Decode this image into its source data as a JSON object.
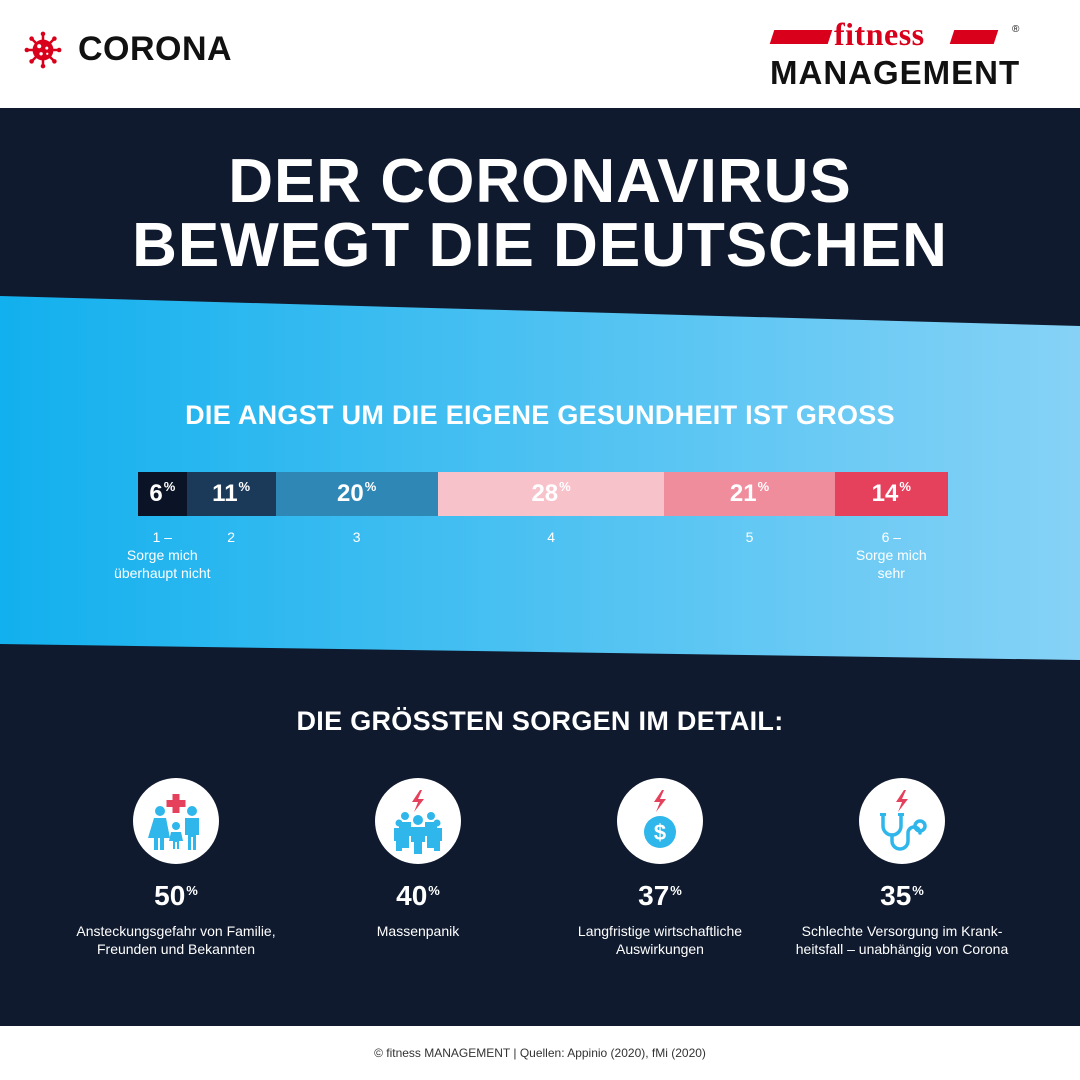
{
  "header": {
    "badge_text": "CORONA",
    "badge_icon": "virus-icon",
    "brand_word": "fitness",
    "brand_sub": "MANAGEMENT",
    "brand_reg": "®"
  },
  "headline": [
    "DER CORONAVIRUS",
    "BEWEGT DIE DEUTSCHEN"
  ],
  "chart_data": [
    {
      "type": "bar",
      "title": "DIE ANGST UM DIE EIGENE GESUNDHEIT IST GROSS",
      "orientation": "stacked-horizontal",
      "categories": [
        "1",
        "2",
        "3",
        "4",
        "5",
        "6"
      ],
      "values": [
        6,
        11,
        20,
        28,
        21,
        14
      ],
      "unit": "%",
      "scale_labels": [
        [
          "1 –",
          "Sorge mich",
          "überhaupt nicht"
        ],
        [
          "2"
        ],
        [
          "3"
        ],
        [
          "4"
        ],
        [
          "5"
        ],
        [
          "6 –",
          "Sorge mich",
          "sehr"
        ]
      ],
      "colors": [
        "#0b1426",
        "#1b3a5a",
        "#2e87b5",
        "#f8c2cb",
        "#ef8d9d",
        "#e5405c"
      ]
    },
    {
      "type": "table",
      "title": "DIE GRÖSSTEN SORGEN IM DETAIL:",
      "unit": "%",
      "rows": [
        {
          "value": 50,
          "label": [
            "Ansteckungsgefahr von Familie,",
            "Freunden und Bekannten"
          ],
          "icon": "family-icon"
        },
        {
          "value": 40,
          "label": [
            "Massenpanik"
          ],
          "icon": "crowd-icon"
        },
        {
          "value": 37,
          "label": [
            "Langfristige wirtschaftliche",
            "Auswirkungen"
          ],
          "icon": "dollar-icon"
        },
        {
          "value": 35,
          "label": [
            "Schlechte Versorgung im Krank-",
            "heitsfall – unabhängig von Corona"
          ],
          "icon": "stethoscope-icon"
        }
      ]
    }
  ],
  "footer": "© fitness MANAGEMENT  | Quellen: Appinio (2020), fMi (2020)",
  "colors": {
    "navy": "#0f1a2e",
    "brand_red": "#d9001b",
    "accent_red": "#e5405c",
    "icon_blue": "#2fb6ea",
    "band_light": "#7fd0f6",
    "band_dark": "#16a8ea"
  }
}
